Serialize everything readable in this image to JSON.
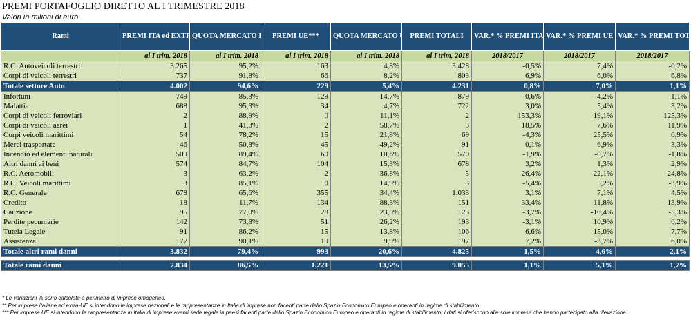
{
  "title": "PREMI PORTAFOGLIO DIRETTO AL I TRIMESTRE 2018",
  "subtitle": "Valori in milioni di euro",
  "headers": [
    "Rami",
    "PREMI ITA ed EXTRA UE**",
    "QUOTA MERCATO ITA ed EXTRA UE",
    "PREMI UE***",
    "QUOTA MERCATO UE",
    "PREMI TOTALI",
    "VAR.* % PREMI ITA ed EXTRA UE",
    "VAR.* % PREMI UE",
    "VAR.* % PREMI TOTALI"
  ],
  "subheaders": [
    "",
    "al I trim. 2018",
    "al I trim. 2018",
    "al I trim. 2018",
    "al I trim. 2018",
    "al I trim. 2018",
    "2018/2017",
    "2018/2017",
    "2018/2017"
  ],
  "group_auto": [
    [
      "R.C. Autoveicoli terrestri",
      "3.265",
      "95,2%",
      "163",
      "4,8%",
      "3.428",
      "-0,5%",
      "7,4%",
      "-0,2%"
    ],
    [
      "Corpi di veicoli terrestri",
      "737",
      "91,8%",
      "66",
      "8,2%",
      "803",
      "6,9%",
      "6,0%",
      "6,8%"
    ]
  ],
  "total_auto": [
    "Totale settore Auto",
    "4.002",
    "94,6%",
    "229",
    "5,4%",
    "4.231",
    "0,8%",
    "7,0%",
    "1,1%"
  ],
  "group_other": [
    [
      "Infortuni",
      "749",
      "85,3%",
      "129",
      "14,7%",
      "879",
      "-0,6%",
      "-4,2%",
      "-1,1%"
    ],
    [
      "Malattia",
      "688",
      "95,3%",
      "34",
      "4,7%",
      "722",
      "3,0%",
      "5,4%",
      "3,2%"
    ],
    [
      "Corpi di veicoli ferroviari",
      "2",
      "88,9%",
      "0",
      "11,1%",
      "2",
      "153,3%",
      "19,1%",
      "125,3%"
    ],
    [
      "Corpi di veicoli aerei",
      "1",
      "41,3%",
      "2",
      "58,7%",
      "3",
      "18,5%",
      "7,6%",
      "11,9%"
    ],
    [
      "Corpi veicoli marittimi",
      "54",
      "78,2%",
      "15",
      "21,8%",
      "69",
      "-4,3%",
      "25,5%",
      "0,9%"
    ],
    [
      "Merci trasportate",
      "46",
      "50,8%",
      "45",
      "49,2%",
      "91",
      "0,1%",
      "6,9%",
      "3,3%"
    ],
    [
      "Incendio ed elementi naturali",
      "509",
      "89,4%",
      "60",
      "10,6%",
      "570",
      "-1,9%",
      "-0,7%",
      "-1,8%"
    ],
    [
      "Altri danni ai beni",
      "574",
      "84,7%",
      "104",
      "15,3%",
      "678",
      "3,2%",
      "1,3%",
      "2,9%"
    ],
    [
      "R.C. Aeromobili",
      "3",
      "63,2%",
      "2",
      "36,8%",
      "5",
      "26,4%",
      "22,1%",
      "24,8%"
    ],
    [
      "R.C. Veicoli marittimi",
      "3",
      "85,1%",
      "0",
      "14,9%",
      "3",
      "-5,4%",
      "5,2%",
      "-3,9%"
    ],
    [
      "R.C. Generale",
      "678",
      "65,6%",
      "355",
      "34,4%",
      "1.033",
      "3,1%",
      "7,1%",
      "4,5%"
    ],
    [
      "Credito",
      "18",
      "11,7%",
      "134",
      "88,3%",
      "151",
      "33,4%",
      "11,8%",
      "13,9%"
    ],
    [
      "Cauzione",
      "95",
      "77,0%",
      "28",
      "23,0%",
      "123",
      "-3,7%",
      "-10,4%",
      "-5,3%"
    ],
    [
      "Perdite pecuniarie",
      "142",
      "73,8%",
      "51",
      "26,2%",
      "193",
      "-3,1%",
      "10,9%",
      "0,2%"
    ],
    [
      "Tutela Legale",
      "91",
      "86,2%",
      "15",
      "13,8%",
      "106",
      "6,6%",
      "15,0%",
      "7,7%"
    ],
    [
      "Assistenza",
      "177",
      "90,1%",
      "19",
      "9,9%",
      "197",
      "7,2%",
      "-3,7%",
      "6,0%"
    ]
  ],
  "total_other": [
    "Totale altri rami danni",
    "3.832",
    "79,4%",
    "993",
    "20,6%",
    "4.825",
    "1,5%",
    "4,6%",
    "2,1%"
  ],
  "total_all": [
    "Totale rami danni",
    "7.834",
    "86,5%",
    "1.221",
    "13,5%",
    "9.055",
    "1,1%",
    "5,1%",
    "1,7%"
  ],
  "notes": [
    "* Le variazioni % sono calcolate a perimetro di imprese omogeneo.",
    "** Per imprese italiane ed extra-UE si intendono le imprese nazionali e le rappresentanze in Italia di imprese non facenti parte dello Spazio Economico Europeo e operanti in regime di stabilimento.",
    "*** Per imprese UE si intendono le rappresentanze in Italia di imprese aventi sede legale in paesi facenti parte dello Spazio Economico Europeo e operanti in regime di stabilimento; i dati si riferiscono alle sole imprese che hanno partecipato alla rilevazione."
  ]
}
